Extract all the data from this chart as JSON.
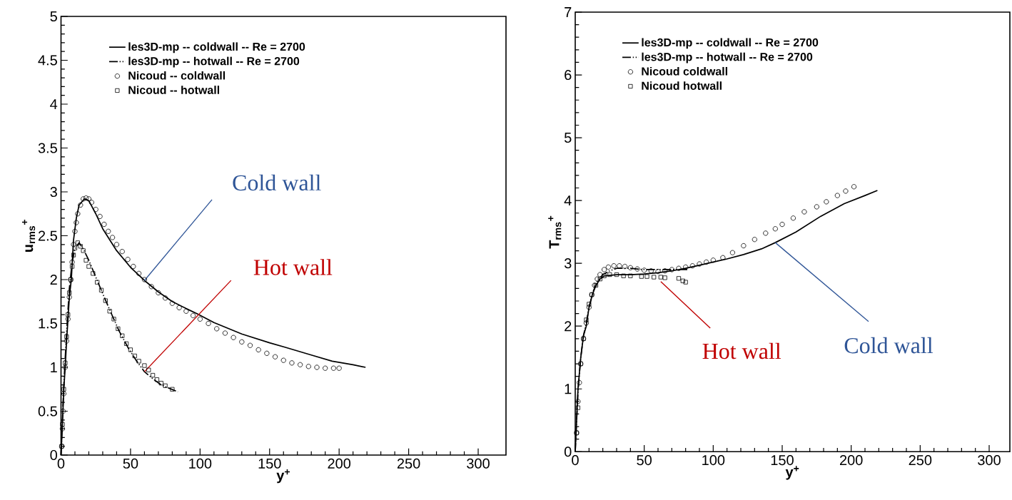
{
  "chart_data": [
    {
      "type": "line",
      "xlabel": "y$^{+}$",
      "ylabel": "u$_{rms}$$^{+}$",
      "xlim": [
        0,
        320
      ],
      "ylim": [
        0,
        5
      ],
      "xticks": [
        0,
        50,
        100,
        150,
        200,
        250,
        300
      ],
      "yticks": [
        0,
        0.5,
        1,
        1.5,
        2,
        2.5,
        3,
        3.5,
        4,
        4.5,
        5
      ],
      "legend": "top left",
      "series": [
        {
          "name": "les3D-mp -- coldwall -- Re = 2700",
          "color": "#000000",
          "line_style": "solid",
          "marker": "none",
          "x": [
            0,
            1,
            2,
            3,
            4,
            5,
            6,
            7.4,
            9,
            11,
            13,
            16.8,
            20,
            25,
            30,
            40,
            50,
            60,
            70,
            80,
            90,
            98,
            110,
            130,
            150,
            161,
            180,
            195,
            210,
            219
          ],
          "values": [
            0,
            0.35,
            0.75,
            1.0,
            1.3,
            1.55,
            1.8,
            2.0,
            2.45,
            2.7,
            2.85,
            2.92,
            2.9,
            2.75,
            2.58,
            2.33,
            2.14,
            1.99,
            1.86,
            1.75,
            1.67,
            1.61,
            1.51,
            1.38,
            1.28,
            1.23,
            1.14,
            1.07,
            1.03,
            1.0
          ]
        },
        {
          "name": "les3D-mp -- hotwall -- Re = 2700",
          "color": "#000000",
          "line_style": "dashdotdot",
          "marker": "none",
          "x": [
            0,
            1,
            2,
            3,
            4,
            5,
            6,
            7,
            8,
            10,
            13,
            16,
            20,
            26,
            30,
            36,
            41.6,
            48,
            54,
            60,
            66,
            72,
            78,
            84
          ],
          "values": [
            0,
            0.4,
            0.8,
            1.1,
            1.4,
            1.65,
            1.9,
            2.05,
            2.2,
            2.35,
            2.42,
            2.35,
            2.22,
            1.99,
            1.84,
            1.62,
            1.42,
            1.23,
            1.08,
            0.95,
            0.87,
            0.8,
            0.76,
            0.72
          ]
        },
        {
          "name": "Nicoud -- coldwall",
          "type": "scatter",
          "color": "#000000",
          "marker": "circle",
          "x": [
            0.5,
            1,
            1.5,
            2,
            3,
            4,
            5,
            6,
            7,
            8,
            9,
            10,
            11,
            12,
            14,
            16,
            18,
            20,
            22,
            25,
            28,
            31,
            34,
            37,
            40,
            44,
            48,
            52,
            56,
            60,
            65,
            70,
            75,
            80,
            85,
            90,
            95,
            100,
            106,
            112,
            118,
            124,
            130,
            136,
            142,
            148,
            154,
            160,
            166,
            172,
            178,
            184,
            190,
            196,
            200
          ],
          "values": [
            0.1,
            0.3,
            0.5,
            0.7,
            1.0,
            1.3,
            1.55,
            1.8,
            2.0,
            2.2,
            2.4,
            2.55,
            2.65,
            2.75,
            2.85,
            2.92,
            2.93,
            2.92,
            2.88,
            2.8,
            2.72,
            2.63,
            2.55,
            2.48,
            2.4,
            2.32,
            2.23,
            2.15,
            2.07,
            2.0,
            1.92,
            1.85,
            1.79,
            1.73,
            1.68,
            1.64,
            1.59,
            1.55,
            1.5,
            1.44,
            1.39,
            1.34,
            1.29,
            1.25,
            1.2,
            1.16,
            1.12,
            1.08,
            1.05,
            1.03,
            1.01,
            1.0,
            0.99,
            0.99,
            0.99
          ]
        },
        {
          "name": "Nicoud -- hotwall",
          "type": "scatter",
          "color": "#000000",
          "marker": "square",
          "x": [
            0.5,
            1,
            2,
            3,
            4,
            5,
            6,
            7,
            8,
            9,
            10,
            12,
            14,
            16,
            18,
            20,
            23,
            26,
            29,
            32,
            35,
            38,
            41,
            44,
            47,
            50,
            53,
            56,
            60,
            63,
            66,
            69,
            72,
            75,
            80
          ],
          "values": [
            0.1,
            0.35,
            0.75,
            1.05,
            1.35,
            1.6,
            1.85,
            2.0,
            2.15,
            2.28,
            2.36,
            2.42,
            2.38,
            2.33,
            2.22,
            2.15,
            2.07,
            1.97,
            1.88,
            1.76,
            1.64,
            1.55,
            1.44,
            1.36,
            1.27,
            1.2,
            1.13,
            1.07,
            1.02,
            0.97,
            0.91,
            0.86,
            0.82,
            0.79,
            0.75
          ]
        }
      ],
      "annotations": [
        {
          "text": "Cold wall",
          "x": 60,
          "y": 1.99
        },
        {
          "text": "Hot wall",
          "x": 60,
          "y": 0.95
        }
      ]
    },
    {
      "type": "line",
      "xlabel": "y$^{+}$",
      "ylabel": "T$_{rms}$$^{+}$",
      "xlim": [
        0,
        315
      ],
      "ylim": [
        0,
        7
      ],
      "xticks": [
        0,
        50,
        100,
        150,
        200,
        250,
        300
      ],
      "yticks": [
        0,
        1,
        2,
        3,
        4,
        5,
        6,
        7
      ],
      "legend": "top left",
      "series": [
        {
          "name": "les3D-mp -- coldwall -- Re = 2700",
          "color": "#000000",
          "line_style": "solid",
          "marker": "none",
          "x": [
            0,
            1,
            2,
            4,
            6,
            8,
            10,
            12.4,
            15,
            18,
            21,
            30,
            40,
            50,
            60,
            70,
            80,
            90,
            100,
            110,
            122,
            135,
            145,
            160,
            178,
            195,
            210,
            219
          ],
          "values": [
            0,
            0.5,
            1.0,
            1.5,
            1.85,
            2.0,
            2.3,
            2.5,
            2.65,
            2.75,
            2.8,
            2.82,
            2.82,
            2.83,
            2.85,
            2.88,
            2.92,
            2.97,
            3.02,
            3.07,
            3.14,
            3.23,
            3.33,
            3.5,
            3.75,
            3.95,
            4.08,
            4.16
          ]
        },
        {
          "name": "les3D-mp -- hotwall -- Re = 2700",
          "color": "#000000",
          "line_style": "dashdotdot",
          "marker": "none",
          "x": [
            0,
            1,
            2,
            4,
            6,
            8,
            10,
            13,
            16,
            20,
            25,
            30,
            40,
            50,
            60,
            70,
            82
          ],
          "values": [
            0,
            0.5,
            0.95,
            1.5,
            1.85,
            2.05,
            2.3,
            2.55,
            2.72,
            2.82,
            2.88,
            2.92,
            2.92,
            2.9,
            2.9,
            2.9,
            2.9
          ]
        },
        {
          "name": "Nicoud coldwall",
          "type": "scatter",
          "color": "#000000",
          "marker": "circle",
          "x": [
            1,
            2,
            3,
            4,
            6,
            8,
            10,
            12,
            14,
            16,
            18,
            21,
            24,
            28,
            32,
            36,
            40,
            45,
            50,
            55,
            60,
            65,
            70,
            75,
            80,
            85,
            90,
            95,
            100,
            107,
            114,
            122,
            130,
            138,
            145,
            150,
            158,
            166,
            175,
            182,
            190,
            196,
            202
          ],
          "values": [
            0.3,
            0.8,
            1.1,
            1.4,
            1.8,
            2.05,
            2.3,
            2.5,
            2.65,
            2.75,
            2.82,
            2.9,
            2.94,
            2.96,
            2.96,
            2.95,
            2.93,
            2.91,
            2.89,
            2.88,
            2.87,
            2.88,
            2.9,
            2.92,
            2.94,
            2.96,
            2.99,
            3.02,
            3.05,
            3.09,
            3.17,
            3.28,
            3.38,
            3.48,
            3.55,
            3.62,
            3.72,
            3.82,
            3.9,
            3.98,
            4.08,
            4.15,
            4.22
          ]
        },
        {
          "name": "Nicoud hotwall",
          "type": "scatter",
          "color": "#000000",
          "marker": "square",
          "x": [
            1,
            2,
            4,
            6,
            8,
            10,
            12,
            15,
            18,
            21,
            25,
            30,
            35,
            40,
            48,
            52,
            57,
            62,
            65,
            75,
            78,
            80
          ],
          "values": [
            0.3,
            0.7,
            1.4,
            1.8,
            2.1,
            2.35,
            2.5,
            2.65,
            2.75,
            2.8,
            2.82,
            2.82,
            2.8,
            2.8,
            2.79,
            2.79,
            2.78,
            2.78,
            2.77,
            2.76,
            2.72,
            2.7
          ]
        }
      ],
      "annotations": [
        {
          "text": "Hot wall",
          "x": 62,
          "y": 2.71
        },
        {
          "text": "Cold wall",
          "x": 145,
          "y": 3.33
        }
      ]
    }
  ]
}
